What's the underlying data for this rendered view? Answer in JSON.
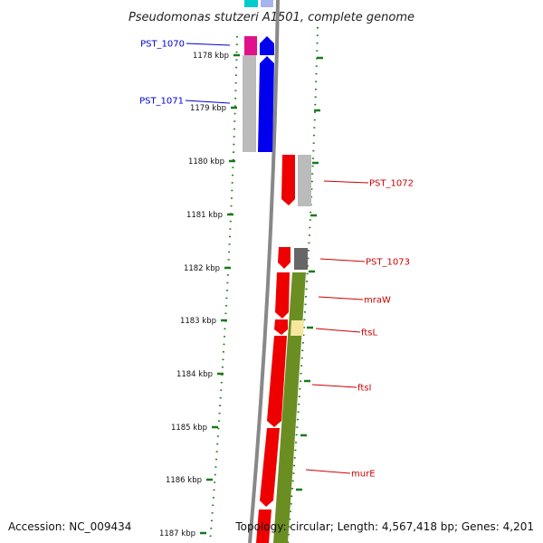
{
  "title": "Pseudomonas stutzeri A1501, complete genome",
  "footer": {
    "accession": "Accession: NC_009434",
    "topology": "Topology: circular; Length: 4,567,418 bp; Genes: 4,201"
  },
  "ticks": [
    {
      "label": "1178 kbp",
      "kbp": 1178
    },
    {
      "label": "1179 kbp",
      "kbp": 1179
    },
    {
      "label": "1180 kbp",
      "kbp": 1180
    },
    {
      "label": "1181 kbp",
      "kbp": 1181
    },
    {
      "label": "1182 kbp",
      "kbp": 1182
    },
    {
      "label": "1183 kbp",
      "kbp": 1183
    },
    {
      "label": "1184 kbp",
      "kbp": 1184
    },
    {
      "label": "1185 kbp",
      "kbp": 1185
    },
    {
      "label": "1186 kbp",
      "kbp": 1186
    },
    {
      "label": "1187 kbp",
      "kbp": 1187
    }
  ],
  "gene_labels": [
    {
      "text": "PST_1070",
      "color": "#0000cc",
      "strand": "minus"
    },
    {
      "text": "PST_1071",
      "color": "#0000cc",
      "strand": "minus"
    },
    {
      "text": "PST_1072",
      "color": "#cc0000",
      "strand": "plus"
    },
    {
      "text": "PST_1073",
      "color": "#cc0000",
      "strand": "plus"
    },
    {
      "text": "mraW",
      "color": "#cc0000",
      "strand": "plus"
    },
    {
      "text": "ftsL",
      "color": "#cc0000",
      "strand": "plus"
    },
    {
      "text": "ftsI",
      "color": "#cc0000",
      "strand": "plus"
    },
    {
      "text": "murE",
      "color": "#cc0000",
      "strand": "plus"
    }
  ],
  "colors": {
    "minus_cds": "#0000ee",
    "plus_cds": "#ee0000",
    "tick": "#1a7a1a",
    "backbone": "#888888",
    "cog_magenta": "#e0118a",
    "cog_gray_light": "#bbbbbb",
    "cog_gray_dark": "#666666",
    "cog_olive": "#6b8e23",
    "cog_pale_yellow": "#f5e6a0",
    "cog_cyan": "#00cccc"
  }
}
